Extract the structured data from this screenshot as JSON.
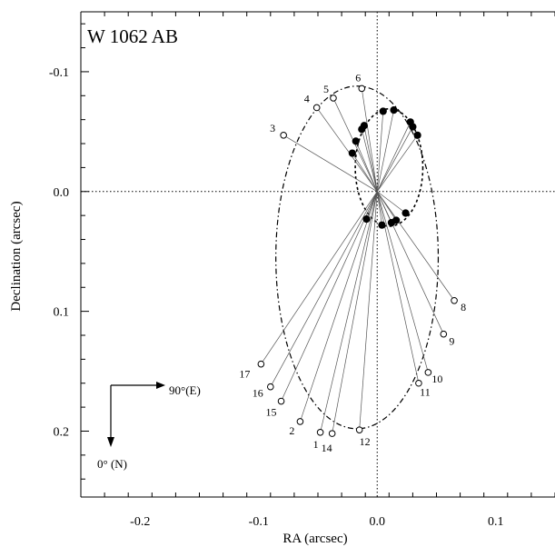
{
  "chart_data": {
    "type": "scatter",
    "title": "W 1062 AB",
    "xlabel": "RA (arcsec)",
    "ylabel": "Declination (arcsec)",
    "xlim": [
      -0.25,
      0.15
    ],
    "ylim": [
      -0.15,
      0.255
    ],
    "y_inverted": true,
    "x_ticks": [
      -0.2,
      -0.1,
      0.0,
      0.1
    ],
    "x_tick_labels": [
      "-0.2",
      "-0.1",
      "0.0",
      "0.1"
    ],
    "y_ticks": [
      -0.1,
      0.0,
      0.1,
      0.2
    ],
    "y_tick_labels": [
      "-0.1",
      "0.0",
      "0.1",
      "0.2"
    ],
    "compass": {
      "east_label": "90°(E)",
      "north_label": "0° (N)"
    },
    "outer_orbit_points": [
      {
        "label": "1",
        "x": -0.048,
        "y": 0.201
      },
      {
        "label": "2",
        "x": -0.065,
        "y": 0.192
      },
      {
        "label": "3",
        "x": -0.079,
        "y": -0.047
      },
      {
        "label": "4",
        "x": -0.051,
        "y": -0.07
      },
      {
        "label": "5",
        "x": -0.037,
        "y": -0.078
      },
      {
        "label": "6",
        "x": -0.013,
        "y": -0.086
      },
      {
        "label": "8",
        "x": 0.065,
        "y": 0.091
      },
      {
        "label": "9",
        "x": 0.056,
        "y": 0.119
      },
      {
        "label": "10",
        "x": 0.043,
        "y": 0.151
      },
      {
        "label": "11",
        "x": 0.035,
        "y": 0.16
      },
      {
        "label": "12",
        "x": -0.015,
        "y": 0.199
      },
      {
        "label": "14",
        "x": -0.038,
        "y": 0.202
      },
      {
        "label": "15",
        "x": -0.081,
        "y": 0.175
      },
      {
        "label": "16",
        "x": -0.09,
        "y": 0.163
      },
      {
        "label": "17",
        "x": -0.098,
        "y": 0.144
      }
    ],
    "inner_orbit_points": [
      {
        "x": 0.005,
        "y": -0.067
      },
      {
        "x": 0.014,
        "y": -0.068
      },
      {
        "x": 0.028,
        "y": -0.058
      },
      {
        "x": 0.03,
        "y": -0.054
      },
      {
        "x": 0.034,
        "y": -0.047
      },
      {
        "x": -0.011,
        "y": -0.055
      },
      {
        "x": -0.013,
        "y": -0.052
      },
      {
        "x": -0.018,
        "y": -0.042
      },
      {
        "x": -0.021,
        "y": -0.032
      },
      {
        "x": -0.009,
        "y": 0.023
      },
      {
        "x": 0.004,
        "y": 0.028
      },
      {
        "x": 0.012,
        "y": 0.026
      },
      {
        "x": 0.016,
        "y": 0.024
      },
      {
        "x": 0.024,
        "y": 0.018
      }
    ],
    "outer_orbit_ellipse": {
      "center": [
        -0.017,
        0.055
      ],
      "semi_axis_x": 0.0685,
      "semi_axis_y": 0.143
    },
    "inner_orbit_ellipse": {
      "center": [
        0.01,
        -0.02
      ],
      "semi_axis_x": 0.0285,
      "semi_axis_y": 0.049
    },
    "grid": false
  }
}
